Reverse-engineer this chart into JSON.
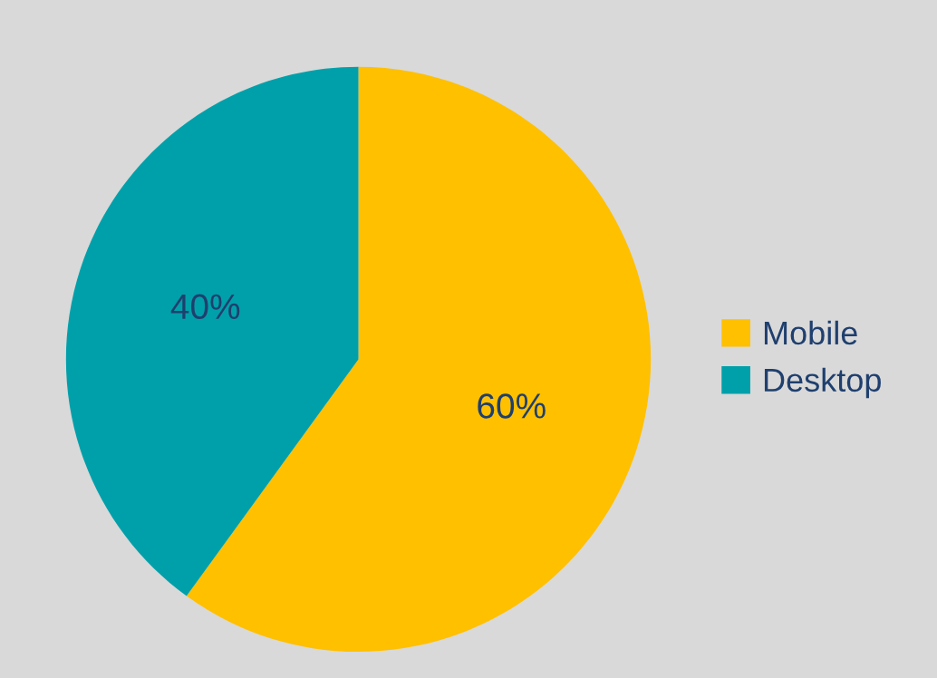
{
  "chart_data": {
    "type": "pie",
    "categories": [
      "Mobile",
      "Desktop"
    ],
    "values": [
      60,
      40
    ],
    "colors": [
      "#ffc000",
      "#00a0aa"
    ],
    "value_labels": [
      "60%",
      "40%"
    ],
    "legend": "right"
  }
}
